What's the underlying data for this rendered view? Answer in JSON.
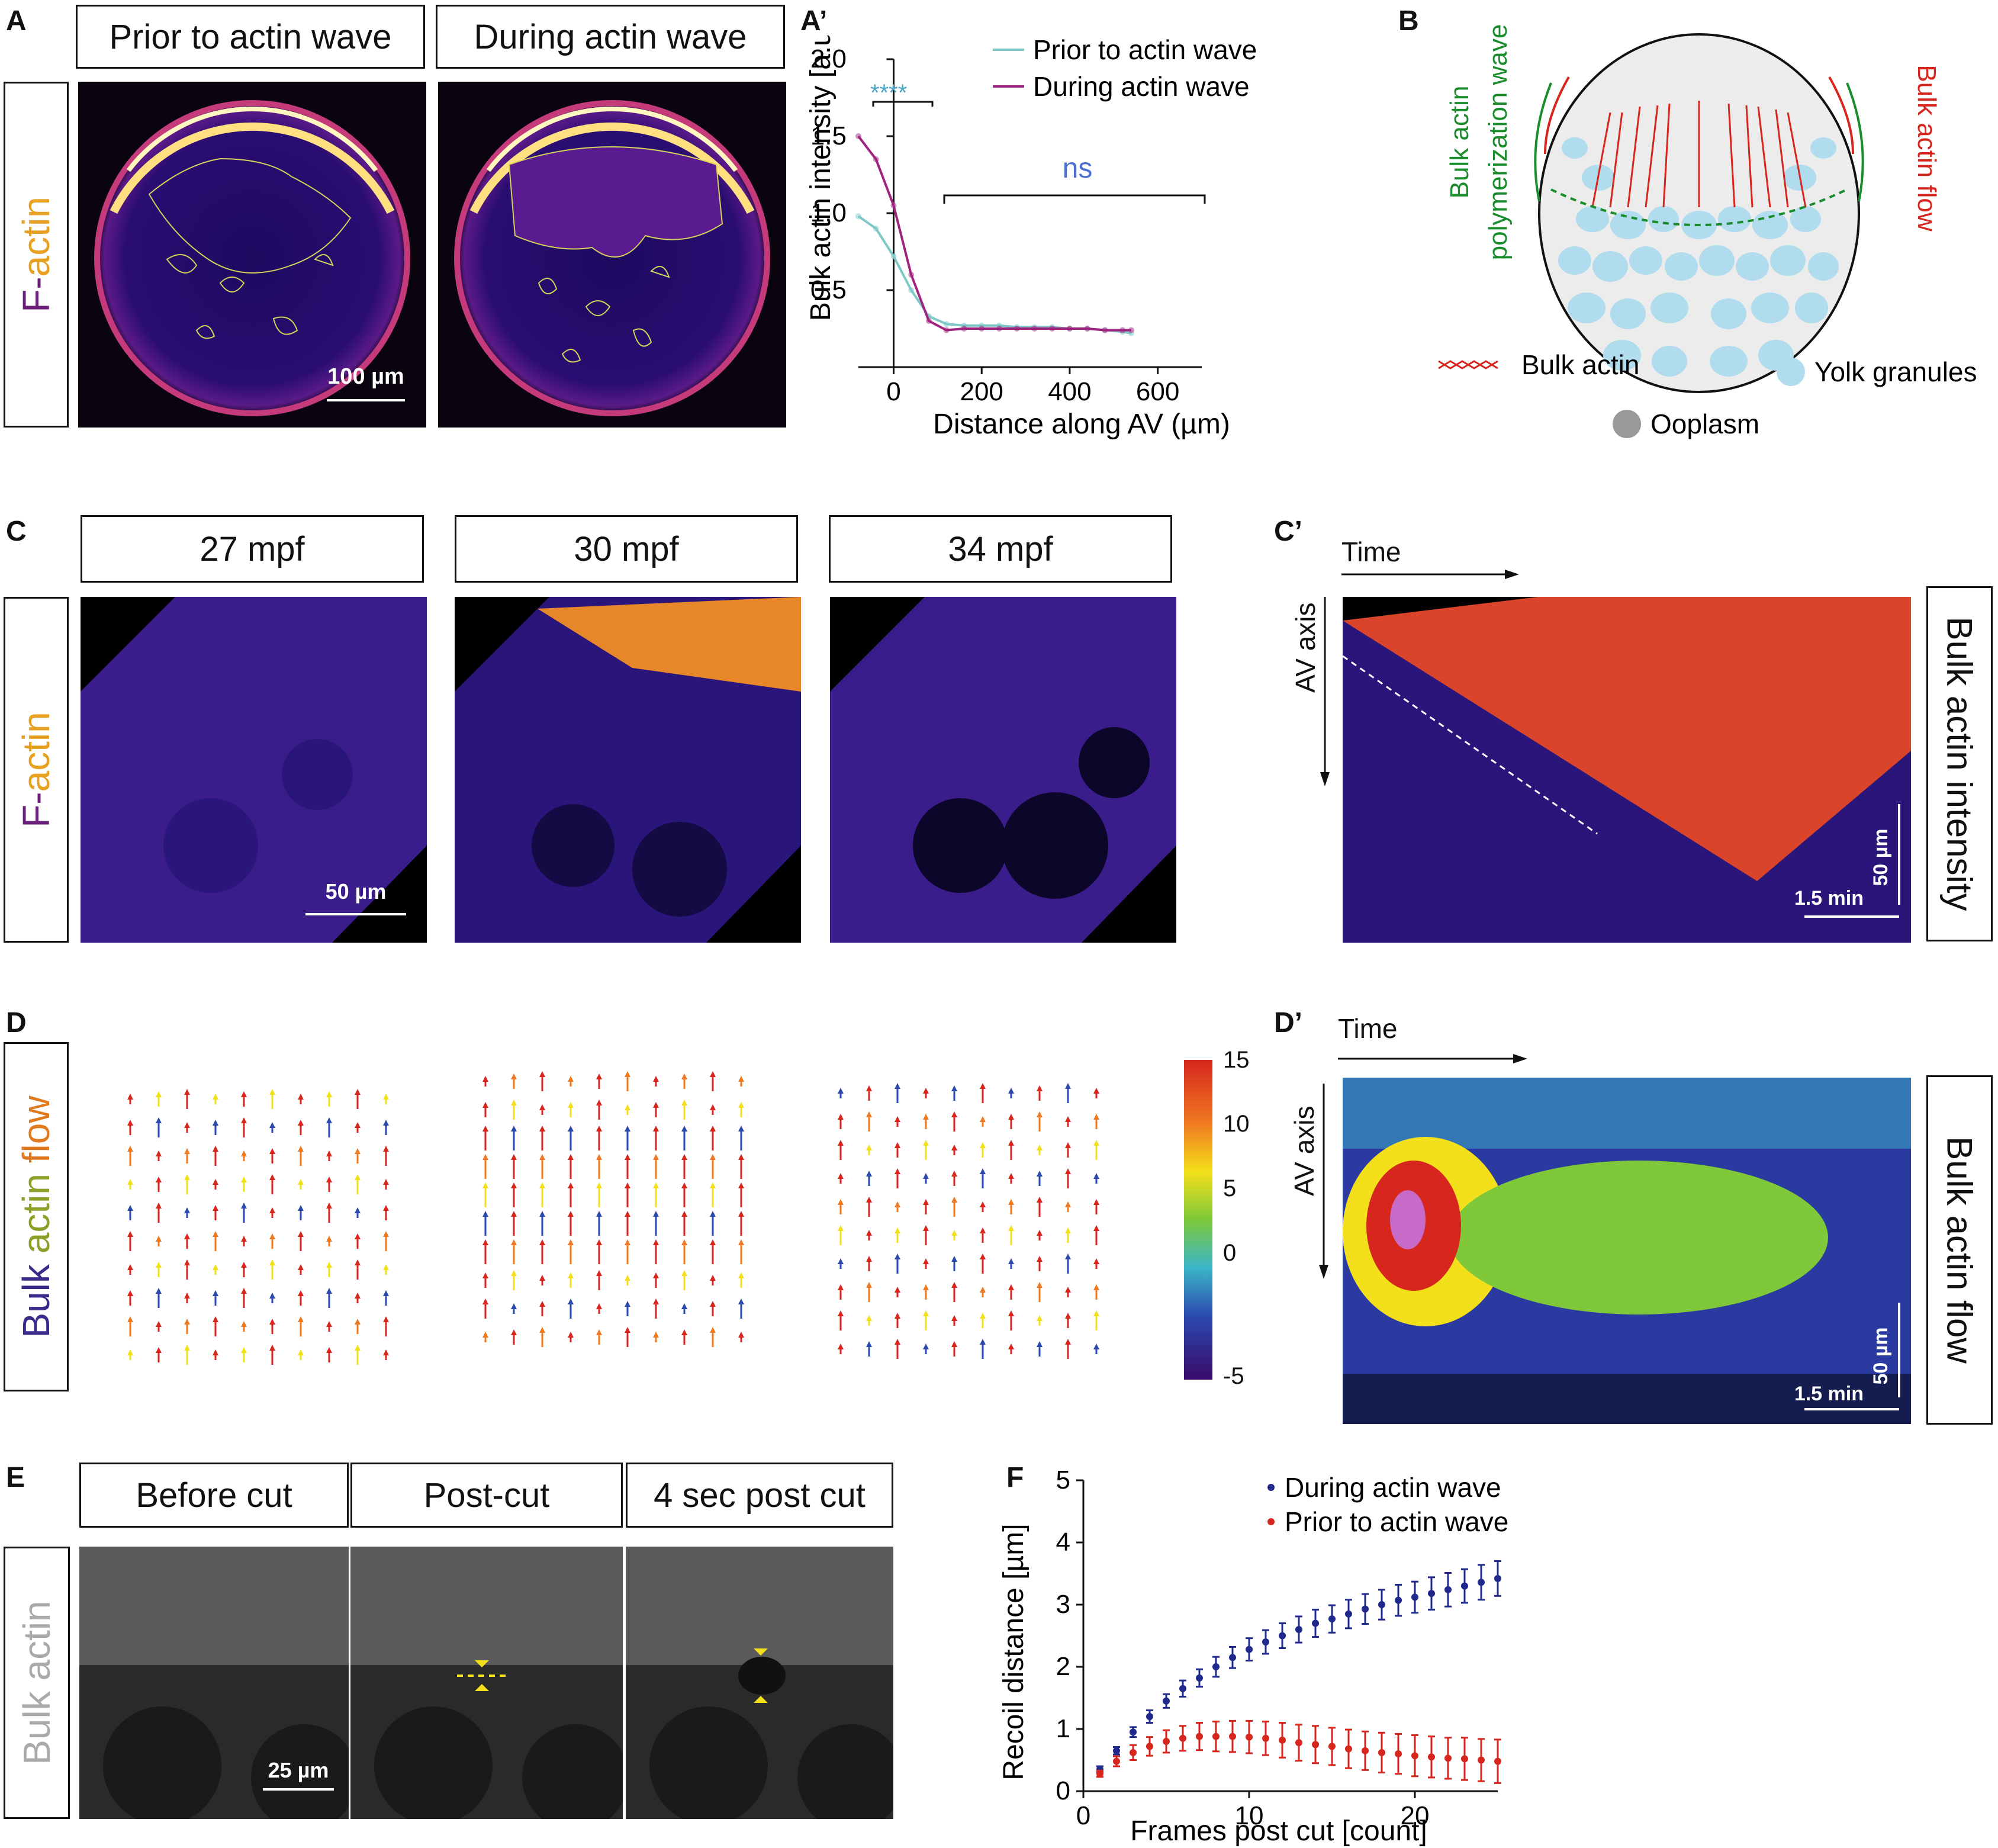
{
  "panel_letters": {
    "A": "A",
    "A2": "A’",
    "B": "B",
    "C": "C",
    "C2": "C’",
    "D": "D",
    "D2": "D’",
    "E": "E",
    "F": "F"
  },
  "panelA": {
    "titles": [
      "Prior to actin wave",
      "During actin wave"
    ],
    "side_label": {
      "part1": "F-",
      "part2": "actin"
    },
    "scale_bar": "100 µm"
  },
  "panelB": {
    "left_label_1": "Bulk actin",
    "left_label_2": "polymerization wave",
    "right_label": "Bulk actin flow",
    "legend": {
      "bulk_actin": "Bulk actin",
      "yolk": "Yolk granules",
      "ooplasm": "Ooplasm"
    }
  },
  "panelC": {
    "titles": [
      "27 mpf",
      "30 mpf",
      "34 mpf"
    ],
    "side_label": {
      "part1": "F-",
      "part2": "actin"
    },
    "scale_bar": "50 µm"
  },
  "panelC2": {
    "time_label": "Time",
    "axis_label": "AV axis",
    "right_label": "Bulk actin intensity",
    "scale_y": "50 µm",
    "scale_x": "1.5 min"
  },
  "panelD": {
    "side_label": {
      "part1": "Bulk ",
      "part2": "actin ",
      "part3": "flow"
    },
    "colorbar_ticks": [
      "15",
      "10",
      "5",
      "0",
      "-5"
    ]
  },
  "panelD2": {
    "time_label": "Time",
    "axis_label": "AV axis",
    "right_label": "Bulk actin flow",
    "scale_y": "50 µm",
    "scale_x": "1.5 min"
  },
  "panelE": {
    "titles": [
      "Before cut",
      "Post-cut",
      "4 sec post cut"
    ],
    "side_label": "Bulk actin",
    "scale_bar": "25 µm"
  },
  "colors": {
    "prior": "#7ec8c8",
    "during": "#a0237f",
    "prior_F": "#d7261e",
    "during_F": "#1f2a8c"
  },
  "chart_data": [
    {
      "type": "line",
      "panel": "A’",
      "xlabel": "Distance along AV (µm)",
      "ylabel": "Bulk actin intensity [a.u]",
      "xlim": [
        -80,
        700
      ],
      "ylim": [
        0,
        2.0
      ],
      "xticks": [
        "0",
        "200",
        "400",
        "600"
      ],
      "yticks": [
        "0.5",
        "1.0",
        "1.5",
        "2.0"
      ],
      "legend": [
        "Prior to actin wave",
        "During actin wave"
      ],
      "annotations": {
        "sig": "****",
        "ns": "ns"
      },
      "series": [
        {
          "name": "Prior to actin wave",
          "x": [
            -80,
            -40,
            0,
            40,
            80,
            120,
            160,
            200,
            240,
            280,
            320,
            360,
            400,
            440,
            480,
            520,
            540
          ],
          "y": [
            0.98,
            0.9,
            0.72,
            0.5,
            0.33,
            0.28,
            0.27,
            0.27,
            0.27,
            0.26,
            0.26,
            0.26,
            0.25,
            0.25,
            0.24,
            0.23,
            0.22
          ]
        },
        {
          "name": "During actin wave",
          "x": [
            -80,
            -40,
            0,
            40,
            80,
            120,
            160,
            200,
            240,
            280,
            320,
            360,
            400,
            440,
            480,
            520,
            540
          ],
          "y": [
            1.5,
            1.35,
            1.05,
            0.6,
            0.3,
            0.24,
            0.25,
            0.25,
            0.25,
            0.25,
            0.25,
            0.25,
            0.25,
            0.25,
            0.24,
            0.24,
            0.24
          ]
        }
      ]
    },
    {
      "type": "scatter",
      "panel": "F",
      "xlabel": "Frames post cut [count]",
      "ylabel": "Recoil distance [µm]",
      "xlim": [
        0,
        25
      ],
      "ylim": [
        0,
        5
      ],
      "xticks": [
        "0",
        "10",
        "20"
      ],
      "yticks": [
        "0",
        "1",
        "2",
        "3",
        "4",
        "5"
      ],
      "legend": [
        "During actin wave",
        "Prior to actin wave"
      ],
      "series": [
        {
          "name": "During actin wave",
          "x": [
            1,
            2,
            3,
            4,
            5,
            6,
            7,
            8,
            9,
            10,
            11,
            12,
            13,
            14,
            15,
            16,
            17,
            18,
            19,
            20,
            21,
            22,
            23,
            24,
            25
          ],
          "y": [
            0.35,
            0.65,
            0.95,
            1.2,
            1.45,
            1.65,
            1.82,
            2.0,
            2.15,
            2.28,
            2.4,
            2.5,
            2.6,
            2.7,
            2.77,
            2.85,
            2.93,
            3.0,
            3.07,
            3.12,
            3.18,
            3.24,
            3.3,
            3.36,
            3.42
          ],
          "err": [
            0.05,
            0.06,
            0.08,
            0.1,
            0.11,
            0.13,
            0.14,
            0.16,
            0.17,
            0.18,
            0.19,
            0.2,
            0.21,
            0.22,
            0.22,
            0.23,
            0.24,
            0.24,
            0.25,
            0.25,
            0.26,
            0.27,
            0.27,
            0.28,
            0.28
          ]
        },
        {
          "name": "Prior to actin wave",
          "x": [
            1,
            2,
            3,
            4,
            5,
            6,
            7,
            8,
            9,
            10,
            11,
            12,
            13,
            14,
            15,
            16,
            17,
            18,
            19,
            20,
            21,
            22,
            23,
            24,
            25
          ],
          "y": [
            0.28,
            0.48,
            0.62,
            0.72,
            0.8,
            0.85,
            0.88,
            0.88,
            0.88,
            0.87,
            0.85,
            0.82,
            0.78,
            0.75,
            0.72,
            0.68,
            0.65,
            0.62,
            0.6,
            0.57,
            0.55,
            0.53,
            0.52,
            0.5,
            0.48
          ],
          "err": [
            0.05,
            0.08,
            0.12,
            0.15,
            0.18,
            0.2,
            0.22,
            0.24,
            0.25,
            0.26,
            0.27,
            0.28,
            0.29,
            0.3,
            0.3,
            0.31,
            0.31,
            0.32,
            0.32,
            0.33,
            0.33,
            0.33,
            0.34,
            0.34,
            0.35
          ]
        }
      ]
    }
  ]
}
